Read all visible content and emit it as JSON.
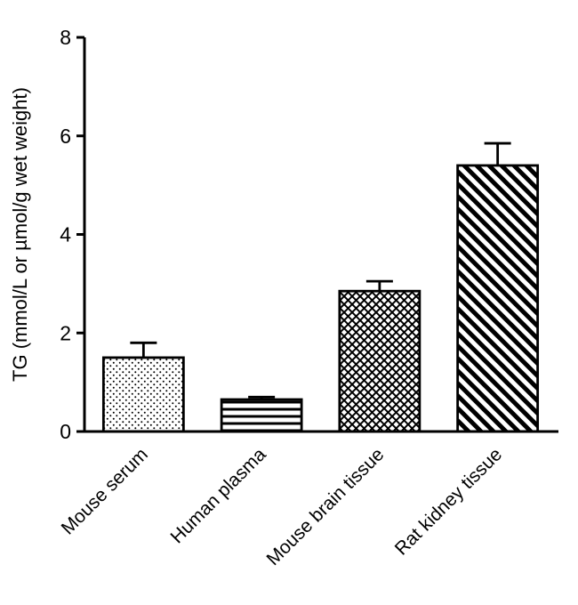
{
  "figure": {
    "background": "#ffffff",
    "ink_color": "#000000"
  },
  "chart_data": {
    "type": "bar",
    "title": "",
    "categories": [
      "Mouse serum",
      "Human plasma",
      "Mouse brain tissue",
      "Rat kidney tissue"
    ],
    "series": [
      {
        "name": "TG",
        "values": [
          1.5,
          0.65,
          2.85,
          5.4
        ],
        "errors_upper": [
          0.3,
          0.05,
          0.2,
          0.45
        ]
      }
    ],
    "error_bar_style": "upper-only-with-cap",
    "bar_patterns": [
      "dots",
      "horizontal-lines",
      "crosshatch",
      "diagonal-lines"
    ],
    "bar_fill": "#ffffff",
    "bar_stroke": "#000000",
    "xlabel": "",
    "ylabel": "TG (mmol/L or µmol/g wet weight)",
    "ylim": [
      0,
      8
    ],
    "yticks": [
      0,
      2,
      4,
      6,
      8
    ],
    "x_tick_rotation_deg": 45,
    "grid": false,
    "legend": "none"
  }
}
